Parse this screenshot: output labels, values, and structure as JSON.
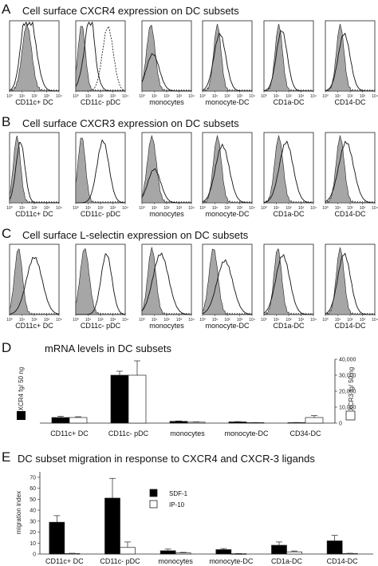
{
  "panel_a": {
    "letter": "A",
    "title": "Cell surface CXCR4 expression on DC subsets",
    "subsets": [
      "CD11c+ DC",
      "CD11c- pDC",
      "monocytes",
      "monocyte-DC",
      "CD1a-DC",
      "CD14-DC"
    ],
    "tick_labels": [
      "10⁰",
      "10¹",
      "10²",
      "10³",
      "10⁴"
    ]
  },
  "panel_b": {
    "letter": "B",
    "title": "Cell surface CXCR3 expression on DC subsets",
    "subsets": [
      "CD11c+ DC",
      "CD11c- pDC",
      "monocytes",
      "monocyte-DC",
      "CD1a-DC",
      "CD14-DC"
    ],
    "tick_labels": [
      "10⁰",
      "10¹",
      "10²",
      "10³",
      "10⁴"
    ]
  },
  "panel_c": {
    "letter": "C",
    "title": "Cell surface L-selectin expression on DC subsets",
    "subsets": [
      "CD11c+ DC",
      "CD11c- pDC",
      "monocytes",
      "monocyte-DC",
      "CD1a-DC",
      "CD14-DC"
    ],
    "tick_labels": [
      "10⁰",
      "10¹",
      "10²",
      "10³",
      "10⁴"
    ]
  },
  "chart_data": [
    {
      "type": "bar",
      "letter": "D",
      "title": "mRNA levels in DC subsets",
      "categories": [
        "CD11c+ DC",
        "CD11c- pDC",
        "monocytes",
        "monocyte-DC",
        "CD34-DC"
      ],
      "series": [
        {
          "name": "CXCR4",
          "axis": "left",
          "values": [
            700,
            6000,
            220,
            150,
            60
          ],
          "errors": [
            150,
            500,
            50,
            40,
            20
          ]
        },
        {
          "name": "CXCR3",
          "axis": "right",
          "values": [
            3500,
            30000,
            600,
            300,
            3500
          ],
          "errors": [
            500,
            9000,
            150,
            80,
            1200
          ]
        }
      ],
      "ylabel_left": "CXCR4 fg/ 50 ng",
      "ylabel_right": "CXCR3 fg/ 50 ng",
      "ylim_right": [
        0,
        40000
      ],
      "right_ticks": [
        "0",
        "10,000",
        "20,000",
        "30,000",
        "40,000"
      ]
    },
    {
      "type": "bar",
      "letter": "E",
      "title": "DC subset migration in response to CXCR4 and CXCR-3 ligands",
      "categories": [
        "CD11c+ DC",
        "CD11c- pDC",
        "monocytes",
        "monocyte-DC",
        "CD1a-DC",
        "CD14-DC"
      ],
      "series": [
        {
          "name": "SDF-1",
          "values": [
            29,
            51,
            3,
            4,
            8,
            12
          ],
          "errors": [
            6,
            18,
            1.5,
            1,
            3,
            5
          ]
        },
        {
          "name": "IP-10",
          "values": [
            0.5,
            6,
            1,
            0.3,
            2,
            0.5
          ],
          "errors": [
            0.2,
            5,
            0.5,
            0.2,
            0.8,
            0.2
          ]
        }
      ],
      "ylabel": "migration index",
      "ylim": [
        0,
        75
      ],
      "y_ticks": [
        "0",
        "10",
        "20",
        "30",
        "40",
        "50",
        "60",
        "70"
      ]
    }
  ]
}
